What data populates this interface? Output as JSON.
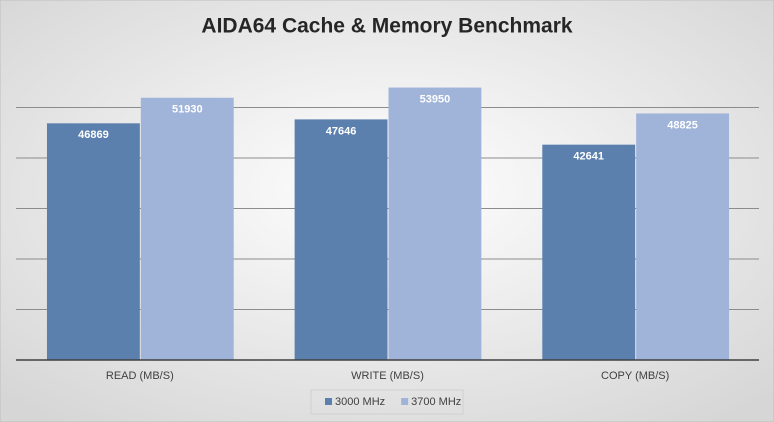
{
  "chart_data": {
    "type": "bar",
    "title": "AIDA64 Cache & Memory Benchmark",
    "categories": [
      "READ (MB/S)",
      "WRITE (MB/S)",
      "COPY (MB/S)"
    ],
    "series": [
      {
        "name": "3000 MHz",
        "color": "#5b80ae",
        "values": [
          46869,
          47646,
          42641
        ]
      },
      {
        "name": "3700 MHz",
        "color": "#a0b3d9",
        "values": [
          51930,
          53950,
          48825
        ]
      }
    ],
    "ylim": [
      0,
      60000
    ],
    "yticks": [
      0,
      10000,
      20000,
      30000,
      40000,
      50000
    ],
    "grid": true,
    "legend": "bottom"
  }
}
